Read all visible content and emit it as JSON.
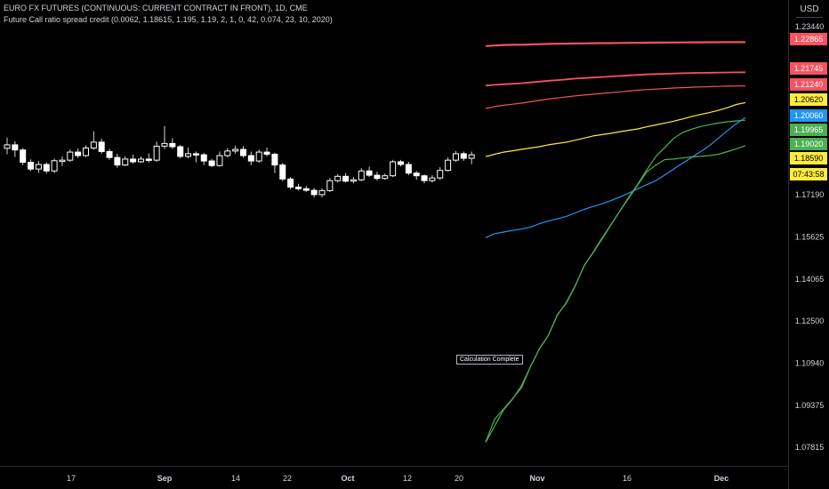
{
  "header": {
    "symbol": "EURO FX FUTURES (CONTINUOUS: CURRENT CONTRACT IN FRONT), 1D, CME",
    "indicator": "Future Call ratio spread credit (0.0062, 1.18615, 1.195, 1.19, 2, 1, 0, 42, 0.074, 23, 10, 2020)"
  },
  "currency": "USD",
  "annotation": "Calculation Complete",
  "chart_data": {
    "type": "line",
    "y_scale": [
      1.07815,
      1.2344
    ],
    "y_ticks": [
      "1.23440",
      "1.17190",
      "1.15625",
      "1.14065",
      "1.12500",
      "1.10940",
      "1.09375",
      "1.07815"
    ],
    "x_ticks": [
      "17",
      "Sep",
      "14",
      "22",
      "Oct",
      "12",
      "20",
      "Nov",
      "16",
      "Dec"
    ],
    "price_labels": [
      {
        "text": "1.22865",
        "bg": "#f7525f",
        "fg": "#ffffff"
      },
      {
        "text": "1.21745",
        "bg": "#f7525f",
        "fg": "#ffffff"
      },
      {
        "text": "1.21240",
        "bg": "#f7525f",
        "fg": "#ffffff"
      },
      {
        "text": "1.20620",
        "bg": "#ffeb3b",
        "fg": "#000000"
      },
      {
        "text": "1.20060",
        "bg": "#2196f3",
        "fg": "#ffffff"
      },
      {
        "text": "1.19965",
        "bg": "#4caf50",
        "fg": "#ffffff"
      },
      {
        "text": "1.19020",
        "bg": "#4caf50",
        "fg": "#ffffff"
      },
      {
        "text": "1.18590",
        "bg": "#ffeb3b",
        "fg": "#000000"
      },
      {
        "text": "07:43:58",
        "bg": "#ffeb3b",
        "fg": "#000000"
      }
    ],
    "candles": [
      [
        1.1892,
        1.1905,
        1.1932,
        1.187
      ],
      [
        1.1905,
        1.1886,
        1.1918,
        1.186
      ],
      [
        1.1886,
        1.184,
        1.1893,
        1.183
      ],
      [
        1.184,
        1.1815,
        1.1851,
        1.1808
      ],
      [
        1.1815,
        1.1832,
        1.1845,
        1.18
      ],
      [
        1.1832,
        1.1808,
        1.184,
        1.1798
      ],
      [
        1.1808,
        1.1846,
        1.1854,
        1.18
      ],
      [
        1.1846,
        1.1848,
        1.1862,
        1.1826
      ],
      [
        1.1848,
        1.1878,
        1.1888,
        1.1842
      ],
      [
        1.1878,
        1.1865,
        1.1891,
        1.1856
      ],
      [
        1.1865,
        1.1893,
        1.1903,
        1.186
      ],
      [
        1.1893,
        1.1915,
        1.1955,
        1.1886
      ],
      [
        1.1915,
        1.188,
        1.1928,
        1.1872
      ],
      [
        1.188,
        1.1858,
        1.189,
        1.185
      ],
      [
        1.1858,
        1.183,
        1.1872,
        1.182
      ],
      [
        1.183,
        1.1852,
        1.1863,
        1.1826
      ],
      [
        1.1852,
        1.1842,
        1.1869,
        1.1835
      ],
      [
        1.1842,
        1.1852,
        1.1862,
        1.1838
      ],
      [
        1.1852,
        1.1848,
        1.1873,
        1.184
      ],
      [
        1.1848,
        1.19,
        1.1917,
        1.1842
      ],
      [
        1.19,
        1.191,
        1.1975,
        1.1889
      ],
      [
        1.191,
        1.1898,
        1.193,
        1.189
      ],
      [
        1.1898,
        1.1862,
        1.1904,
        1.1855
      ],
      [
        1.1862,
        1.1872,
        1.1895,
        1.1855
      ],
      [
        1.1872,
        1.1868,
        1.188,
        1.184
      ],
      [
        1.1868,
        1.1845,
        1.1875,
        1.183
      ],
      [
        1.1845,
        1.1828,
        1.1853,
        1.1822
      ],
      [
        1.1828,
        1.1865,
        1.188,
        1.1824
      ],
      [
        1.1865,
        1.1882,
        1.1893,
        1.1858
      ],
      [
        1.1882,
        1.1888,
        1.1902,
        1.1872
      ],
      [
        1.1888,
        1.1865,
        1.19,
        1.1858
      ],
      [
        1.1865,
        1.1845,
        1.188,
        1.183
      ],
      [
        1.1845,
        1.1878,
        1.1887,
        1.1838
      ],
      [
        1.1878,
        1.187,
        1.1895,
        1.1862
      ],
      [
        1.187,
        1.183,
        1.1876,
        1.18
      ],
      [
        1.183,
        1.1778,
        1.1838,
        1.177
      ],
      [
        1.1778,
        1.1748,
        1.1785,
        1.174
      ],
      [
        1.1748,
        1.1742,
        1.176,
        1.1735
      ],
      [
        1.1742,
        1.1736,
        1.1752,
        1.173
      ],
      [
        1.1736,
        1.172,
        1.1745,
        1.171
      ],
      [
        1.172,
        1.1735,
        1.1743,
        1.171
      ],
      [
        1.1735,
        1.1772,
        1.1782,
        1.173
      ],
      [
        1.1772,
        1.1788,
        1.1796,
        1.1765
      ],
      [
        1.1788,
        1.177,
        1.18,
        1.1765
      ],
      [
        1.177,
        1.1775,
        1.1786,
        1.1762
      ],
      [
        1.1775,
        1.1808,
        1.1818,
        1.177
      ],
      [
        1.1808,
        1.1792,
        1.1824,
        1.1786
      ],
      [
        1.1792,
        1.178,
        1.1805,
        1.1772
      ],
      [
        1.178,
        1.179,
        1.1798,
        1.1775
      ],
      [
        1.179,
        1.1842,
        1.1849,
        1.1785
      ],
      [
        1.1842,
        1.1832,
        1.1849,
        1.1825
      ],
      [
        1.1832,
        1.18,
        1.1842,
        1.1792
      ],
      [
        1.18,
        1.179,
        1.1808,
        1.1775
      ],
      [
        1.179,
        1.1772,
        1.1795,
        1.1762
      ],
      [
        1.1772,
        1.1782,
        1.1792,
        1.1765
      ],
      [
        1.1782,
        1.181,
        1.1822,
        1.1775
      ],
      [
        1.181,
        1.1848,
        1.1858,
        1.1806
      ],
      [
        1.1848,
        1.1872,
        1.1882,
        1.1842
      ],
      [
        1.1872,
        1.1855,
        1.188,
        1.1845
      ],
      [
        1.1855,
        1.1868,
        1.188,
        1.1833
      ]
    ],
    "series": [
      {
        "color": "#f7525f",
        "width": 2.2,
        "x": [
          0,
          10,
          20,
          30,
          40,
          50,
          60,
          70,
          80,
          90,
          100,
          110,
          120,
          130,
          140,
          150,
          160,
          170,
          180,
          190,
          200,
          210,
          220,
          230,
          240,
          250,
          260,
          270,
          280,
          290
        ],
        "y": [
          1.2272,
          1.2274,
          1.2276,
          1.22765,
          1.2277,
          1.2278,
          1.2279,
          1.228,
          1.22805,
          1.2281,
          1.22815,
          1.2282,
          1.22825,
          1.22828,
          1.2283,
          1.22835,
          1.2284,
          1.22842,
          1.22845,
          1.22848,
          1.2285,
          1.22852,
          1.22855,
          1.22858,
          1.2286,
          1.22862,
          1.22863,
          1.22864,
          1.22864,
          1.22865
        ]
      },
      {
        "color": "#f7525f",
        "width": 1.8,
        "x": [
          0,
          10,
          20,
          30,
          40,
          50,
          60,
          70,
          80,
          90,
          100,
          110,
          120,
          130,
          140,
          150,
          160,
          170,
          180,
          190,
          200,
          210,
          220,
          230,
          240,
          250,
          260,
          270,
          280,
          290
        ],
        "y": [
          1.2125,
          1.2128,
          1.213,
          1.2132,
          1.2134,
          1.2137,
          1.214,
          1.2143,
          1.2145,
          1.2148,
          1.2151,
          1.2153,
          1.2155,
          1.2157,
          1.2159,
          1.2161,
          1.2163,
          1.2165,
          1.21665,
          1.2168,
          1.2169,
          1.217,
          1.2171,
          1.2172,
          1.21725,
          1.2173,
          1.21735,
          1.2174,
          1.21742,
          1.21745
        ]
      },
      {
        "color": "#f7525f",
        "width": 1.2,
        "x": [
          0,
          10,
          20,
          30,
          40,
          50,
          60,
          70,
          80,
          90,
          100,
          110,
          120,
          130,
          140,
          150,
          160,
          170,
          180,
          190,
          200,
          210,
          220,
          230,
          240,
          250,
          260,
          270,
          280,
          290
        ],
        "y": [
          1.204,
          1.2047,
          1.2052,
          1.2056,
          1.206,
          1.2065,
          1.207,
          1.2075,
          1.2079,
          1.2083,
          1.2087,
          1.209,
          1.2093,
          1.2096,
          1.2099,
          1.2102,
          1.2105,
          1.2108,
          1.211,
          1.2112,
          1.2114,
          1.2116,
          1.21175,
          1.2119,
          1.212,
          1.2121,
          1.2122,
          1.2123,
          1.21235,
          1.2124
        ]
      },
      {
        "color": "#ffeb3b",
        "width": 1.2,
        "x": [
          0,
          10,
          20,
          30,
          40,
          50,
          60,
          70,
          80,
          90,
          100,
          110,
          120,
          130,
          140,
          150,
          160,
          170,
          180,
          190,
          200,
          210,
          220,
          230,
          240,
          250,
          260,
          270,
          280,
          290
        ],
        "y": [
          1.1861,
          1.187,
          1.1878,
          1.1883,
          1.1888,
          1.1893,
          1.1898,
          1.1905,
          1.191,
          1.1915,
          1.1922,
          1.193,
          1.1938,
          1.1943,
          1.1948,
          1.1954,
          1.1959,
          1.1964,
          1.1972,
          1.1979,
          1.1986,
          1.1993,
          1.2001,
          1.201,
          1.2018,
          1.2025,
          1.2033,
          1.2043,
          1.2055,
          1.2062
        ]
      },
      {
        "color": "#2196f3",
        "width": 1.2,
        "x": [
          0,
          10,
          20,
          30,
          40,
          50,
          60,
          70,
          80,
          90,
          100,
          110,
          120,
          130,
          140,
          150,
          160,
          170,
          180,
          190,
          200,
          210,
          220,
          230,
          240,
          250,
          260,
          270,
          280,
          290
        ],
        "y": [
          1.156,
          1.1575,
          1.1581,
          1.1587,
          1.1592,
          1.1599,
          1.1612,
          1.1622,
          1.163,
          1.1639,
          1.1652,
          1.1665,
          1.1676,
          1.1686,
          1.1698,
          1.1711,
          1.1726,
          1.1742,
          1.1757,
          1.1772,
          1.1793,
          1.1815,
          1.1837,
          1.1858,
          1.188,
          1.1902,
          1.193,
          1.1958,
          1.1984,
          1.2006
        ]
      },
      {
        "color": "#4caf50",
        "width": 1.2,
        "x": [
          0,
          10,
          20,
          30,
          40,
          50,
          60,
          70,
          80,
          90,
          100,
          110,
          120,
          130,
          140,
          150,
          160,
          170,
          180,
          190,
          200,
          210,
          220,
          230,
          240,
          250,
          260,
          270,
          280,
          290
        ],
        "y": [
          1.0801,
          1.0886,
          1.0923,
          1.0962,
          1.1002,
          1.108,
          1.1146,
          1.1197,
          1.1272,
          1.1319,
          1.1382,
          1.1455,
          1.1506,
          1.1559,
          1.1609,
          1.166,
          1.1712,
          1.176,
          1.1812,
          1.1862,
          1.1895,
          1.1929,
          1.1951,
          1.1963,
          1.1973,
          1.198,
          1.1986,
          1.1991,
          1.1994,
          1.19965
        ]
      },
      {
        "color": "#4caf50",
        "width": 1.2,
        "x": [
          0,
          10,
          20,
          30,
          40,
          50,
          60,
          70,
          80,
          90,
          100,
          110,
          120,
          130,
          140,
          150,
          160,
          170,
          180,
          190,
          200,
          210,
          220,
          230,
          240,
          250,
          260,
          270,
          280,
          290
        ],
        "y": [
          1.07995,
          1.086,
          1.092,
          1.096,
          1.101,
          1.108,
          1.1148,
          1.1197,
          1.1274,
          1.1316,
          1.138,
          1.1457,
          1.1504,
          1.1555,
          1.1608,
          1.166,
          1.1708,
          1.1757,
          1.1805,
          1.183,
          1.185,
          1.1852,
          1.1856,
          1.186,
          1.1862,
          1.1865,
          1.187,
          1.188,
          1.189,
          1.1902
        ]
      }
    ]
  }
}
